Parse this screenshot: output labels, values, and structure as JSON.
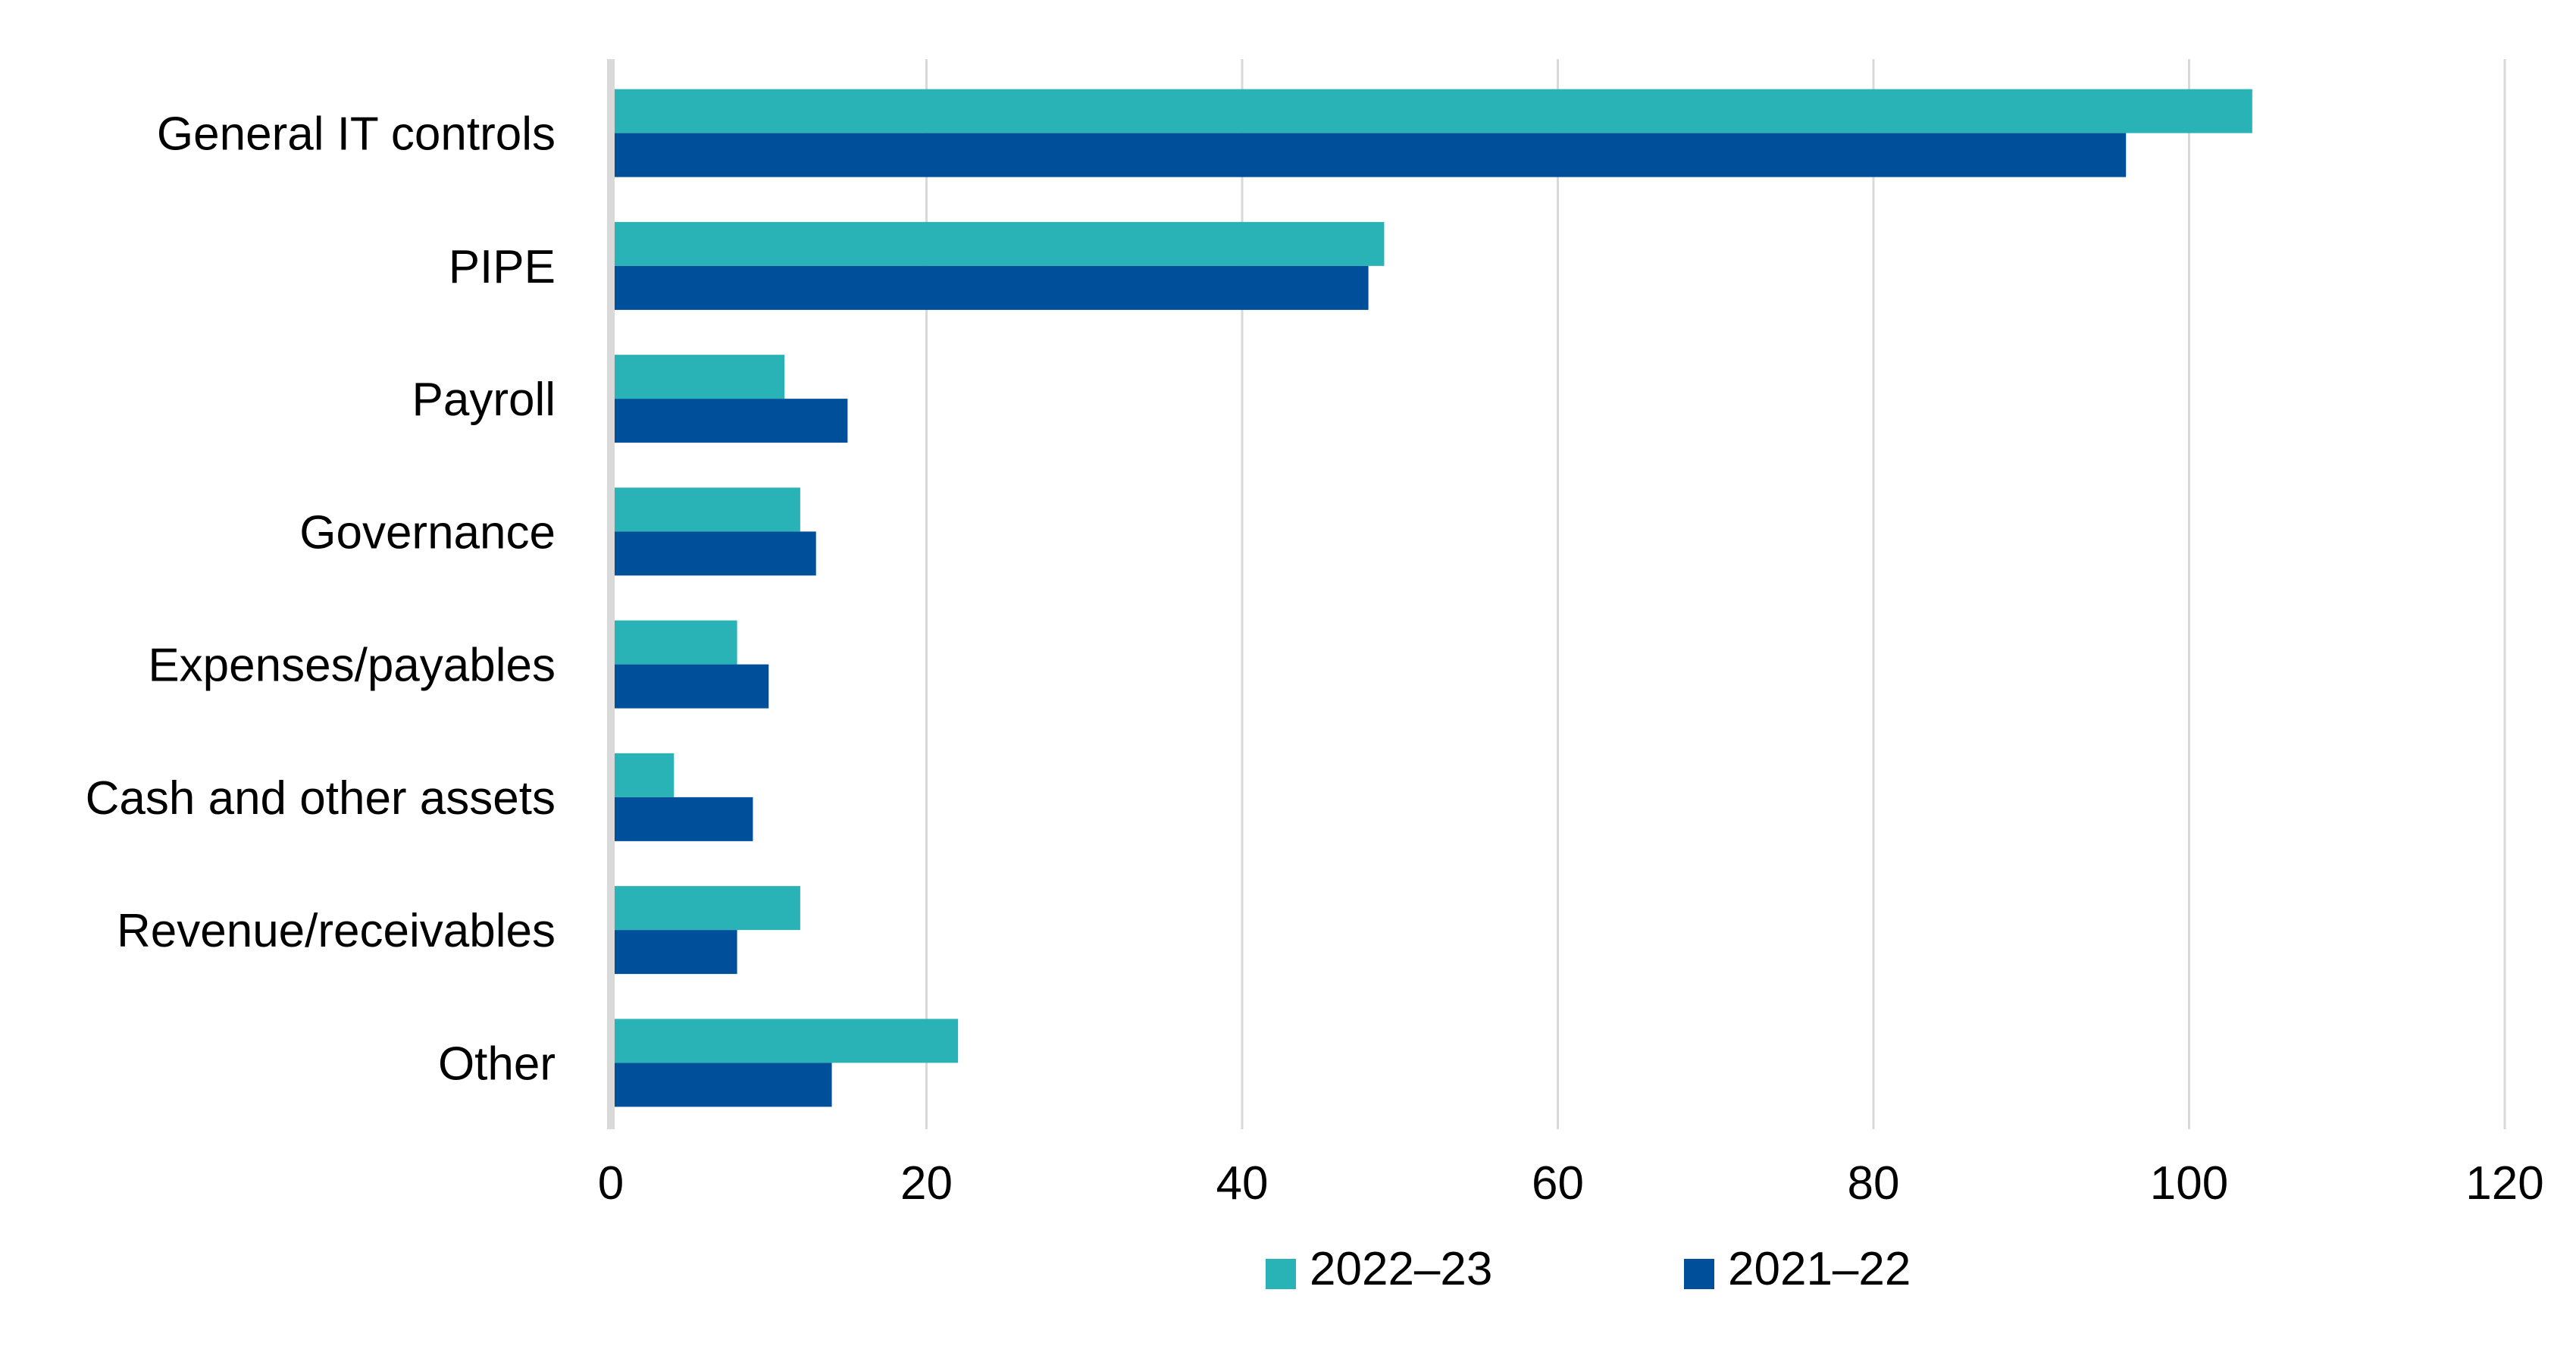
{
  "chart_data": {
    "type": "bar",
    "orientation": "horizontal",
    "title": "",
    "xlabel": "",
    "ylabel": "",
    "categories": [
      "General IT controls",
      "PIPE",
      "Payroll",
      "Governance",
      "Expenses/payables",
      "Cash and other assets",
      "Revenue/receivables",
      "Other"
    ],
    "series": [
      {
        "name": "2022–23",
        "color": "#2ab3b6",
        "values": [
          104,
          49,
          11,
          12,
          8,
          4,
          12,
          22
        ]
      },
      {
        "name": "2021–22",
        "color": "#004f9b",
        "values": [
          96,
          48,
          15,
          13,
          10,
          9,
          8,
          14
        ]
      }
    ],
    "xlim": [
      0,
      120
    ],
    "xticks": [
      "0",
      "20",
      "40",
      "60",
      "80",
      "100",
      "120"
    ],
    "grid": true,
    "legend_position": "bottom-center"
  }
}
